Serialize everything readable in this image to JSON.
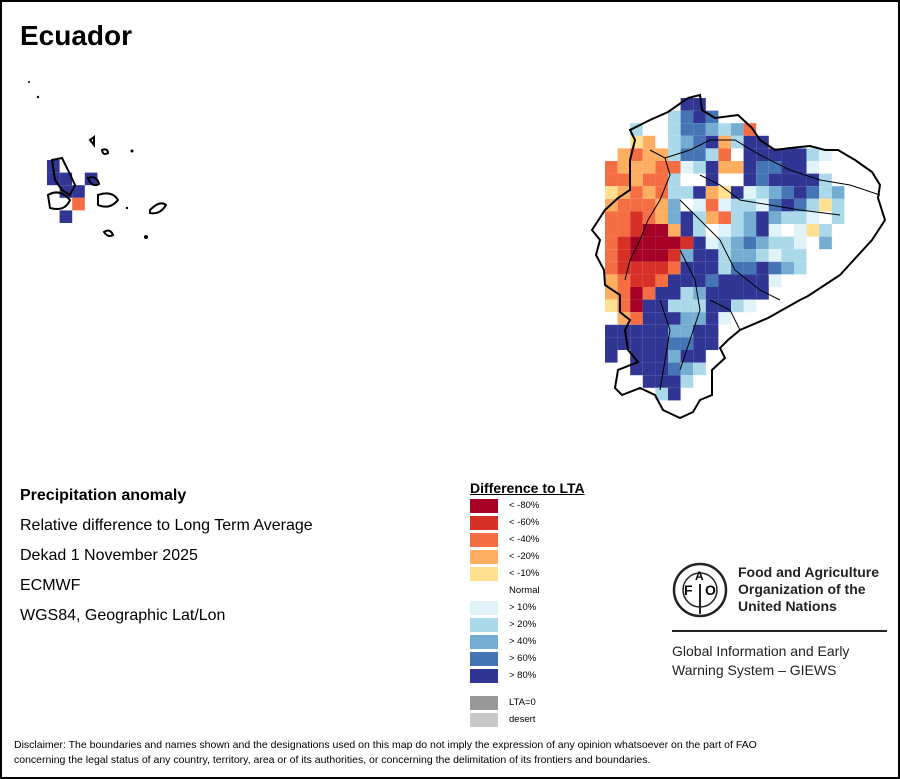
{
  "title": "Ecuador",
  "info": {
    "heading": "Precipitation anomaly",
    "lines": [
      "Relative difference to Long Term Average",
      "Dekad 1 November 2025",
      "ECMWF",
      "WGS84, Geographic Lat/Lon"
    ]
  },
  "legend": {
    "title": "Difference to LTA",
    "items": [
      {
        "label": "< -80%",
        "color": "#a50026"
      },
      {
        "label": "< -60%",
        "color": "#d73027"
      },
      {
        "label": "< -40%",
        "color": "#f46d43"
      },
      {
        "label": "< -20%",
        "color": "#fdae61"
      },
      {
        "label": "< -10%",
        "color": "#fee090"
      },
      {
        "label": "Normal",
        "color": null
      },
      {
        "label": "> 10%",
        "color": "#e0f3f8"
      },
      {
        "label": "> 20%",
        "color": "#abd9e9"
      },
      {
        "label": "> 40%",
        "color": "#74add1"
      },
      {
        "label": "> 60%",
        "color": "#4575b4"
      },
      {
        "label": "> 80%",
        "color": "#313695"
      }
    ],
    "extra": [
      {
        "label": "LTA=0",
        "color": "#999999"
      },
      {
        "label": "desert",
        "color": "#c8c8c8"
      }
    ]
  },
  "fao": {
    "logo_text": [
      "F",
      "A",
      "O",
      "FIAT PANIS"
    ],
    "name_lines": [
      "Food and Agriculture",
      "Organization of the",
      "United Nations"
    ],
    "giews_lines": [
      "Global Information and Early",
      "Warning System – GIEWS"
    ]
  },
  "disclaimer": [
    "Disclaimer: The boundaries and names shown and the designations used on this map do not imply the expression of any opinion whatsoever on the part of FAO",
    "concerning the legal status of any country, territory, area or of its authorities, or concerning the delimitation of its frontiers and boundaries."
  ],
  "map": {
    "class_colors": {
      "a": "#a50026",
      "b": "#d73027",
      "c": "#f46d43",
      "d": "#fdae61",
      "e": "#fee090",
      "n": "#ffffff",
      "f": "#e0f3f8",
      "g": "#abd9e9",
      "h": "#74add1",
      "i": "#4575b4",
      "j": "#313695"
    },
    "mainland_rows": [
      "......jj.........",
      ".....giji........",
      "..gnngiihghc.....",
      "..ednghijdgjj....",
      ".dcddgiigcnjjjjjgf",
      "cdddccfgjddjiijjf",
      "ccdccgnnjnnjijjjjg",
      "edcdcggjdejfghijigh",
      "dcccdhnfcfggfijigeg",
      "ccbcdhjgdcghjhggfng",
      "ccbaadjgnfghjfnfeg",
      "cbaaaabjfghihggfnh",
      "cbaaabhjjghhgfgg",
      "cbbbbcjjjgiijihg",
      "dcbbcjjjijjjjf",
      "dcacjjghjjjjj",
      "ecajjgggjjgf",
      "ndcjjjhhjf",
      "jjjjjhhjj",
      "jjjjjiijj",
      "jnjjjhjj",
      "..jjjihg",
      "...jjjg",
      "....gj"
    ],
    "galapagos_rows": [
      "j....",
      "jjnj.",
      ".jj..",
      "..c..",
      ".j..."
    ]
  }
}
